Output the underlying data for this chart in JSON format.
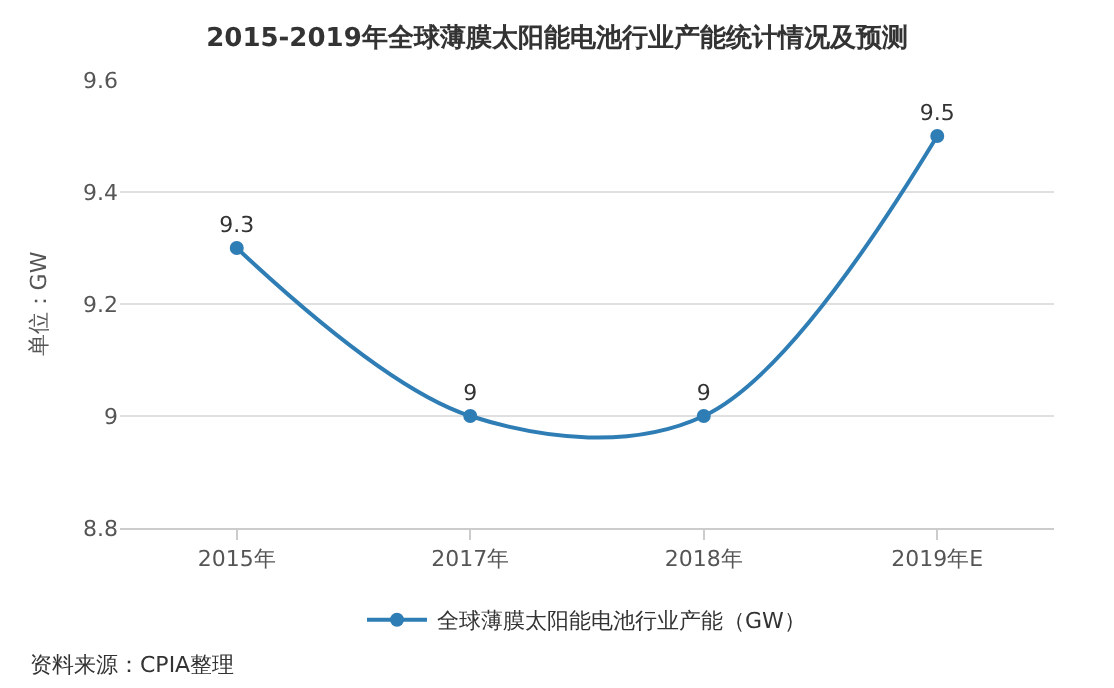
{
  "chart_data": {
    "type": "line",
    "title": "2015-2019年全球薄膜太阳能电池行业产能统计情况及预测",
    "ylabel": "单位：GW",
    "categories": [
      "2015年",
      "2017年",
      "2018年",
      "2019年E"
    ],
    "series": [
      {
        "name": "全球薄膜太阳能电池行业产能（GW）",
        "color": "#2e7db5",
        "values": [
          9.3,
          9,
          9,
          9.5
        ]
      }
    ],
    "ylim": [
      8.8,
      9.6
    ],
    "yticks": [
      8.8,
      9,
      9.2,
      9.4,
      9.6
    ],
    "grid": "y",
    "legend": "bottom",
    "marker": "circle",
    "line_style": "solid",
    "data_labels": true,
    "annotations": [
      "资料来源：CPIA整理"
    ]
  }
}
